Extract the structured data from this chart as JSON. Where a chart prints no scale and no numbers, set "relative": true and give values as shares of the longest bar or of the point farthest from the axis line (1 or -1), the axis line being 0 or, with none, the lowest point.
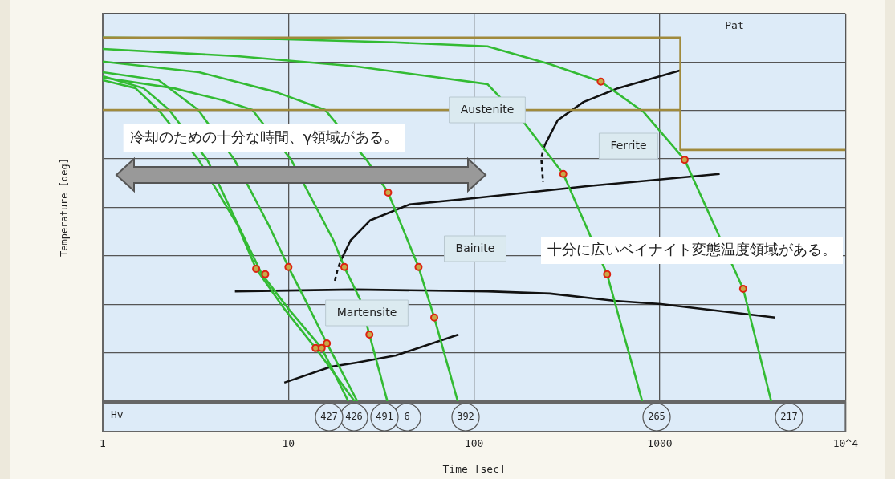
{
  "chart_data": {
    "type": "line",
    "xlabel": "Time [sec]",
    "ylabel": "Temperature [deg]",
    "log": "x",
    "relative": true,
    "grid": true,
    "legend": false,
    "tick_labels": "x",
    "xlim": [
      1,
      10000
    ],
    "xticks": [
      1,
      10,
      100,
      1000,
      {
        "value": 10000,
        "label": "10^4"
      }
    ],
    "series": [
      {
        "type": "line",
        "color": "#a08a3c",
        "x": [
          1,
          1290,
          1290,
          10000
        ],
        "values": [
          1.0,
          1.0,
          0.691,
          0.691
        ]
      },
      {
        "type": "line",
        "color": "#a08a3c",
        "x": [
          1,
          1290
        ],
        "values": [
          0.801,
          0.801
        ]
      },
      {
        "type": "line",
        "color": "#33bb33",
        "x": [
          1,
          8.9,
          37,
          118,
          256,
          481,
          820,
          1360,
          2810,
          3980
        ],
        "values": [
          1.0,
          0.996,
          0.987,
          0.976,
          0.927,
          0.879,
          0.795,
          0.664,
          0.309,
          0
        ]
      },
      {
        "type": "line",
        "color": "#33bb33",
        "x": [
          1,
          5.3,
          23,
          118,
          186,
          302,
          520,
          804
        ],
        "values": [
          0.969,
          0.949,
          0.921,
          0.872,
          0.766,
          0.625,
          0.349,
          0
        ]
      },
      {
        "type": "line",
        "color": "#33bb33",
        "x": [
          1,
          3.3,
          8.6,
          15.8,
          26.5,
          34.4,
          50.2,
          61,
          81.6
        ],
        "values": [
          0.934,
          0.905,
          0.85,
          0.801,
          0.662,
          0.574,
          0.369,
          0.23,
          0
        ]
      },
      {
        "type": "line",
        "color": "#33bb33",
        "x": [
          1,
          2.4,
          4.4,
          6.4,
          10.4,
          17.5,
          20,
          24.3,
          27.3,
          34.1
        ],
        "values": [
          0.89,
          0.861,
          0.828,
          0.801,
          0.662,
          0.442,
          0.369,
          0.28,
          0.183,
          0
        ]
      },
      {
        "type": "line",
        "color": "#33bb33",
        "x": [
          1,
          1.5,
          2.0,
          3.3,
          5.3,
          6.7,
          9.5,
          14,
          22.7
        ],
        "values": [
          0.883,
          0.861,
          0.801,
          0.662,
          0.486,
          0.364,
          0.254,
          0.146,
          0
        ]
      },
      {
        "type": "line",
        "color": "#33bb33",
        "x": [
          1,
          1.66,
          2.28,
          3.67,
          5.6,
          7.2,
          10,
          15.1,
          21
        ],
        "values": [
          0.894,
          0.861,
          0.801,
          0.662,
          0.464,
          0.349,
          0.254,
          0.146,
          0
        ]
      },
      {
        "type": "line",
        "color": "#33bb33",
        "x": [
          1,
          2.0,
          3.27,
          5.15,
          7.8,
          10,
          12.7,
          16.1,
          23.5
        ],
        "values": [
          0.905,
          0.883,
          0.801,
          0.662,
          0.486,
          0.369,
          0.265,
          0.159,
          0
        ]
      },
      {
        "type": "line",
        "color": "#111111",
        "x": [
          239,
          282,
          388,
          596,
          1290
        ],
        "values": [
          0.702,
          0.773,
          0.823,
          0.861,
          0.91
        ]
      },
      {
        "type": "line",
        "color": "#111111",
        "line_style": "dashed",
        "x": [
          239,
          230,
          235
        ],
        "values": [
          0.702,
          0.669,
          0.603
        ]
      },
      {
        "type": "line",
        "color": "#111111",
        "x": [
          19.1,
          21.6,
          27.5,
          44.8,
          97,
          416,
          2100
        ],
        "values": [
          0.386,
          0.442,
          0.497,
          0.541,
          0.558,
          0.592,
          0.625
        ]
      },
      {
        "type": "line",
        "color": "#111111",
        "line_style": "dashed",
        "x": [
          17.8,
          18.3,
          19.1
        ],
        "values": [
          0.331,
          0.358,
          0.386
        ]
      },
      {
        "type": "line",
        "color": "#111111",
        "x": [
          5.15,
          22.7,
          118,
          256,
          573,
          1015,
          4180
        ],
        "values": [
          0.302,
          0.307,
          0.302,
          0.296,
          0.276,
          0.267,
          0.23
        ]
      },
      {
        "type": "line",
        "color": "#111111",
        "x": [
          9.5,
          17,
          23.3,
          37.9,
          82.4
        ],
        "values": [
          0.051,
          0.095,
          0.106,
          0.126,
          0.183
        ]
      },
      {
        "type": "scatter",
        "marker": "circle",
        "color": "#dd2211",
        "x": [
          6.7,
          7.5,
          10,
          14,
          15.1,
          16.1,
          20,
          27.3,
          34.4,
          50.2,
          61,
          302,
          520,
          481,
          1360,
          2810
        ],
        "values": [
          0.364,
          0.349,
          0.369,
          0.146,
          0.146,
          0.159,
          0.369,
          0.183,
          0.574,
          0.369,
          0.23,
          0.625,
          0.349,
          0.879,
          0.664,
          0.309
        ]
      }
    ],
    "annotations": [
      "Hv",
      "427",
      "426",
      "491",
      "6",
      "392",
      "265",
      "217",
      "Pat",
      "Austenite",
      "Ferrite",
      "Bainite",
      "Martensite",
      "冷却のための十分な時間、γ領域がある。",
      "十分に広いベイナイト変態温度領域がある。"
    ]
  }
}
